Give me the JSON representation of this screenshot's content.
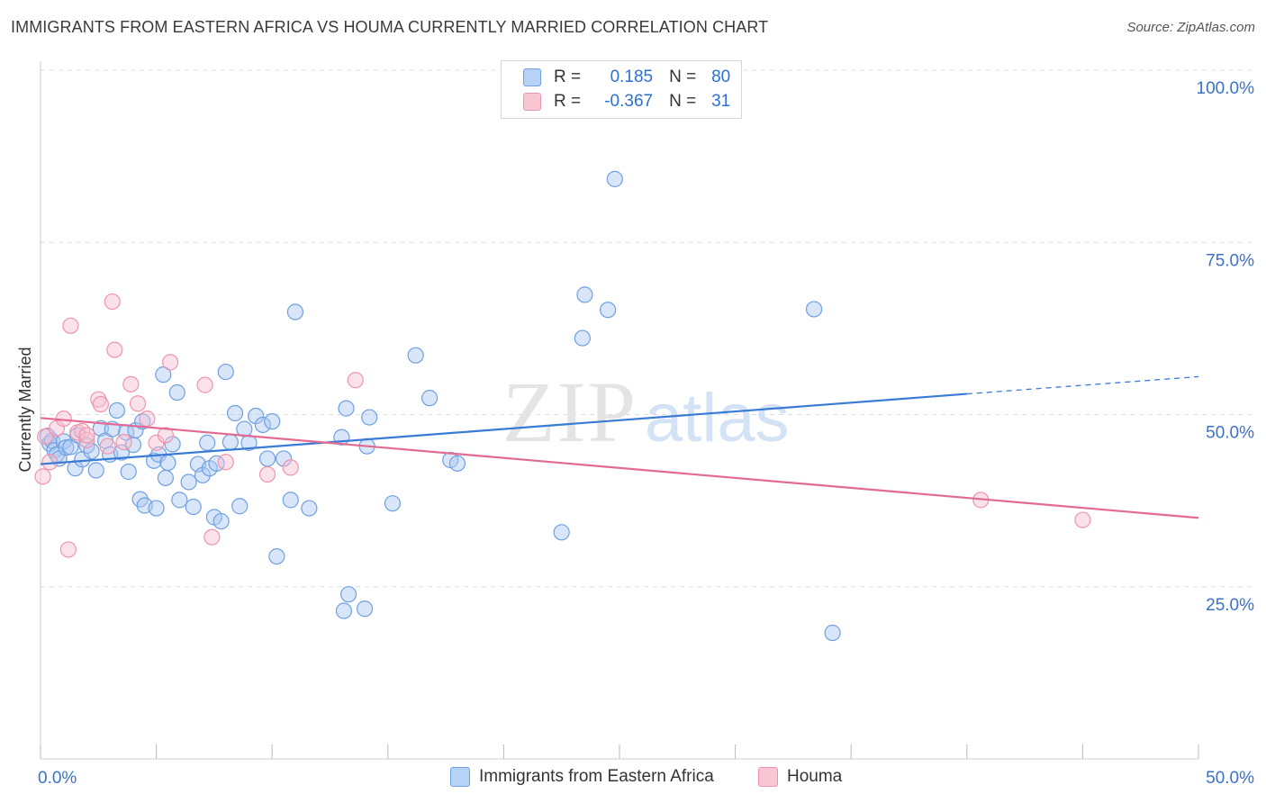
{
  "title": "IMMIGRANTS FROM EASTERN AFRICA VS HOUMA CURRENTLY MARRIED CORRELATION CHART",
  "source": "Source: ZipAtlas.com",
  "watermark": {
    "zip": "ZIP",
    "atlas": "atlas"
  },
  "legend": {
    "r_label": "R =",
    "n_label": "N =",
    "rows": [
      {
        "r": "0.185",
        "n": "80",
        "color": "#6fa0e0"
      },
      {
        "r": "-0.367",
        "n": "31",
        "color": "#ef94ae"
      }
    ]
  },
  "bottom_legend": [
    "Immigrants from Eastern Africa",
    "Houma"
  ],
  "chart_data": {
    "type": "scatter",
    "title": "IMMIGRANTS FROM EASTERN AFRICA VS HOUMA CURRENTLY MARRIED CORRELATION CHART",
    "xlabel": "",
    "ylabel": "Currently Married",
    "xlim": [
      0,
      50
    ],
    "ylim": [
      0,
      100
    ],
    "x_tick_labels": [
      "0.0%",
      "50.0%"
    ],
    "y_tick_labels": [
      "100.0%",
      "75.0%",
      "50.0%",
      "25.0%"
    ],
    "y_ticks": [
      100,
      75,
      50,
      25
    ],
    "grid": true,
    "colors": {
      "blue": "#3a7bd5",
      "pink": "#e26a93",
      "axis_label": "#3a72c8"
    },
    "series": [
      {
        "name": "Immigrants from Eastern Africa",
        "color": "#6fa0e0",
        "points": [
          [
            0.3,
            46.9
          ],
          [
            0.4,
            45.8
          ],
          [
            0.5,
            46.2
          ],
          [
            0.6,
            44.8
          ],
          [
            0.7,
            44.2
          ],
          [
            0.8,
            43.6
          ],
          [
            1.0,
            46.1
          ],
          [
            1.1,
            45.2
          ],
          [
            1.3,
            45.3
          ],
          [
            1.5,
            42.2
          ],
          [
            1.6,
            47.0
          ],
          [
            1.8,
            43.5
          ],
          [
            2.0,
            45.5
          ],
          [
            2.2,
            44.7
          ],
          [
            2.4,
            41.9
          ],
          [
            2.6,
            48.0
          ],
          [
            2.8,
            46.2
          ],
          [
            3.0,
            44.2
          ],
          [
            3.1,
            47.9
          ],
          [
            3.3,
            50.6
          ],
          [
            3.5,
            44.5
          ],
          [
            3.7,
            47.4
          ],
          [
            3.8,
            41.7
          ],
          [
            4.0,
            45.6
          ],
          [
            4.1,
            47.7
          ],
          [
            4.3,
            37.7
          ],
          [
            4.4,
            49.0
          ],
          [
            4.5,
            36.8
          ],
          [
            4.9,
            43.3
          ],
          [
            5.0,
            36.4
          ],
          [
            5.1,
            44.2
          ],
          [
            5.3,
            55.8
          ],
          [
            5.4,
            40.8
          ],
          [
            5.5,
            43.0
          ],
          [
            5.7,
            45.7
          ],
          [
            5.9,
            53.2
          ],
          [
            6.0,
            37.6
          ],
          [
            6.4,
            40.2
          ],
          [
            6.6,
            36.6
          ],
          [
            6.8,
            42.8
          ],
          [
            7.0,
            41.2
          ],
          [
            7.2,
            45.9
          ],
          [
            7.3,
            42.2
          ],
          [
            7.5,
            35.1
          ],
          [
            7.6,
            42.9
          ],
          [
            7.8,
            34.5
          ],
          [
            8.0,
            56.2
          ],
          [
            8.2,
            46.0
          ],
          [
            8.4,
            50.2
          ],
          [
            8.6,
            36.7
          ],
          [
            8.8,
            47.9
          ],
          [
            9.0,
            45.9
          ],
          [
            9.3,
            49.8
          ],
          [
            9.6,
            48.5
          ],
          [
            9.8,
            43.6
          ],
          [
            10.0,
            49.0
          ],
          [
            10.2,
            29.4
          ],
          [
            10.5,
            43.6
          ],
          [
            10.8,
            37.6
          ],
          [
            11.0,
            64.9
          ],
          [
            11.6,
            36.4
          ],
          [
            13.0,
            46.7
          ],
          [
            13.1,
            21.5
          ],
          [
            13.2,
            50.9
          ],
          [
            13.3,
            23.9
          ],
          [
            14.0,
            21.8
          ],
          [
            14.1,
            45.4
          ],
          [
            14.2,
            49.6
          ],
          [
            15.2,
            37.1
          ],
          [
            16.2,
            58.6
          ],
          [
            16.8,
            52.4
          ],
          [
            17.7,
            43.4
          ],
          [
            18.0,
            42.9
          ],
          [
            22.5,
            32.9
          ],
          [
            23.4,
            61.1
          ],
          [
            23.5,
            67.4
          ],
          [
            24.5,
            65.2
          ],
          [
            24.8,
            84.2
          ],
          [
            33.4,
            65.3
          ],
          [
            34.2,
            18.3
          ]
        ]
      },
      {
        "name": "Houma",
        "color": "#ef94ae",
        "points": [
          [
            0.1,
            41.0
          ],
          [
            0.2,
            46.8
          ],
          [
            0.4,
            43.1
          ],
          [
            0.7,
            48.0
          ],
          [
            1.0,
            49.4
          ],
          [
            1.2,
            30.4
          ],
          [
            1.3,
            62.9
          ],
          [
            1.6,
            47.4
          ],
          [
            1.8,
            47.6
          ],
          [
            2.0,
            46.3
          ],
          [
            2.5,
            52.2
          ],
          [
            2.6,
            51.5
          ],
          [
            2.9,
            45.4
          ],
          [
            3.1,
            66.4
          ],
          [
            3.2,
            59.4
          ],
          [
            3.6,
            46.0
          ],
          [
            3.9,
            54.4
          ],
          [
            4.2,
            51.6
          ],
          [
            4.6,
            49.4
          ],
          [
            5.0,
            45.9
          ],
          [
            5.4,
            47.0
          ],
          [
            5.6,
            57.6
          ],
          [
            7.1,
            54.3
          ],
          [
            7.4,
            32.2
          ],
          [
            8.0,
            43.1
          ],
          [
            9.8,
            41.3
          ],
          [
            10.8,
            42.3
          ],
          [
            13.6,
            55.0
          ],
          [
            40.6,
            37.6
          ],
          [
            45.0,
            34.7
          ],
          [
            2.0,
            47.0
          ]
        ]
      }
    ],
    "trendlines": [
      {
        "series": "Immigrants from Eastern Africa",
        "x_solid": [
          0,
          40
        ],
        "y_solid": [
          42.8,
          53.0
        ],
        "x_dashed": [
          40,
          50
        ],
        "y_dashed": [
          53.0,
          55.5
        ]
      },
      {
        "series": "Houma",
        "x": [
          0,
          50
        ],
        "y": [
          49.5,
          35.0
        ]
      }
    ]
  }
}
